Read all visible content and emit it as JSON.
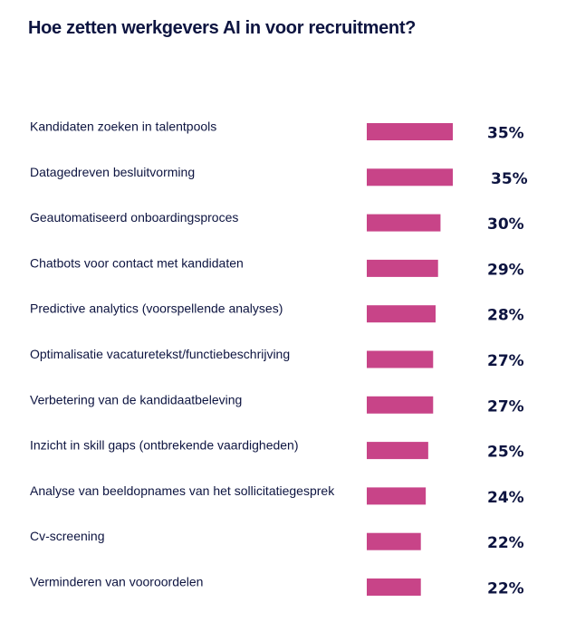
{
  "chart_data": {
    "type": "bar",
    "orientation": "horizontal",
    "title": "Hoe zetten werkgevers AI in voor recruitment?",
    "xlabel": "",
    "ylabel": "",
    "xlim": [
      0,
      35
    ],
    "grid": false,
    "legend": "none",
    "bar_color": "#c84488",
    "text_color": "#0d1440",
    "categories": [
      "Kandidaten zoeken in talentpools",
      "Datagedreven besluitvorming",
      "Geautomatiseerd onboardingsproces",
      "Chatbots voor contact met kandidaten",
      "Predictive analytics (voorspellende analyses)",
      "Optimalisatie vacaturetekst/functiebeschrijving",
      "Verbetering van de kandidaatbeleving",
      "Inzicht in skill gaps (ontbrekende vaardigheden)",
      "Analyse van beeldopnames van het sollicitatiegesprek",
      "Cv-screening",
      "Verminderen van vooroordelen"
    ],
    "values": [
      35,
      35,
      30,
      29,
      28,
      27,
      27,
      25,
      24,
      22,
      22
    ],
    "value_labels": [
      "35%",
      "35%",
      "30%",
      "29%",
      "28%",
      "27%",
      "27%",
      "25%",
      "24%",
      "22%",
      "22%"
    ]
  }
}
